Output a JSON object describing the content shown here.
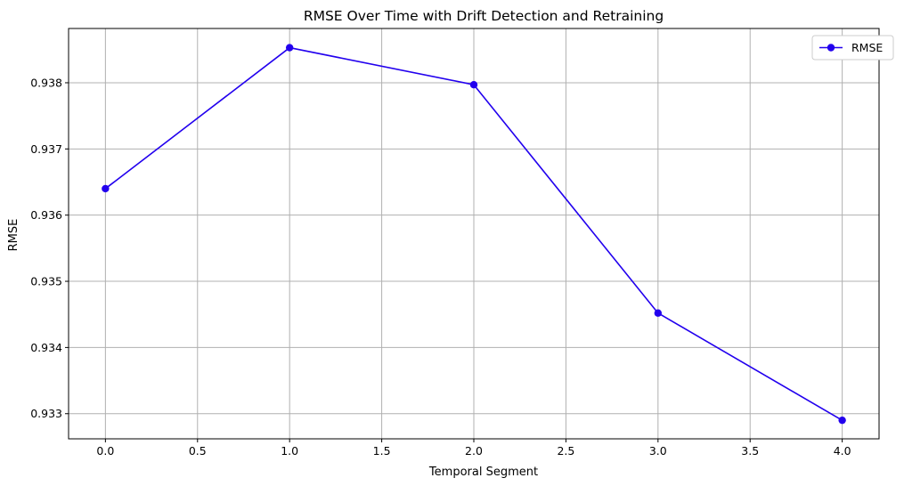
{
  "chart_data": {
    "type": "line",
    "title": "RMSE Over Time with Drift Detection and Retraining",
    "xlabel": "Temporal Segment",
    "ylabel": "RMSE",
    "xlim": [
      -0.2,
      4.2
    ],
    "ylim": [
      0.93262,
      0.93882
    ],
    "x_ticks": [
      0.0,
      0.5,
      1.0,
      1.5,
      2.0,
      2.5,
      3.0,
      3.5,
      4.0
    ],
    "x_tick_labels": [
      "0.0",
      "0.5",
      "1.0",
      "1.5",
      "2.0",
      "2.5",
      "3.0",
      "3.5",
      "4.0"
    ],
    "y_ticks": [
      0.933,
      0.934,
      0.935,
      0.936,
      0.937,
      0.938
    ],
    "y_tick_labels": [
      "0.933",
      "0.934",
      "0.935",
      "0.936",
      "0.937",
      "0.938"
    ],
    "grid": true,
    "legend_position": "top-right",
    "series": [
      {
        "name": "RMSE",
        "color": "#2200ee",
        "marker": "circle",
        "x": [
          0,
          1,
          2,
          3,
          4
        ],
        "y": [
          0.9364,
          0.93853,
          0.93797,
          0.93452,
          0.9329
        ]
      }
    ]
  }
}
